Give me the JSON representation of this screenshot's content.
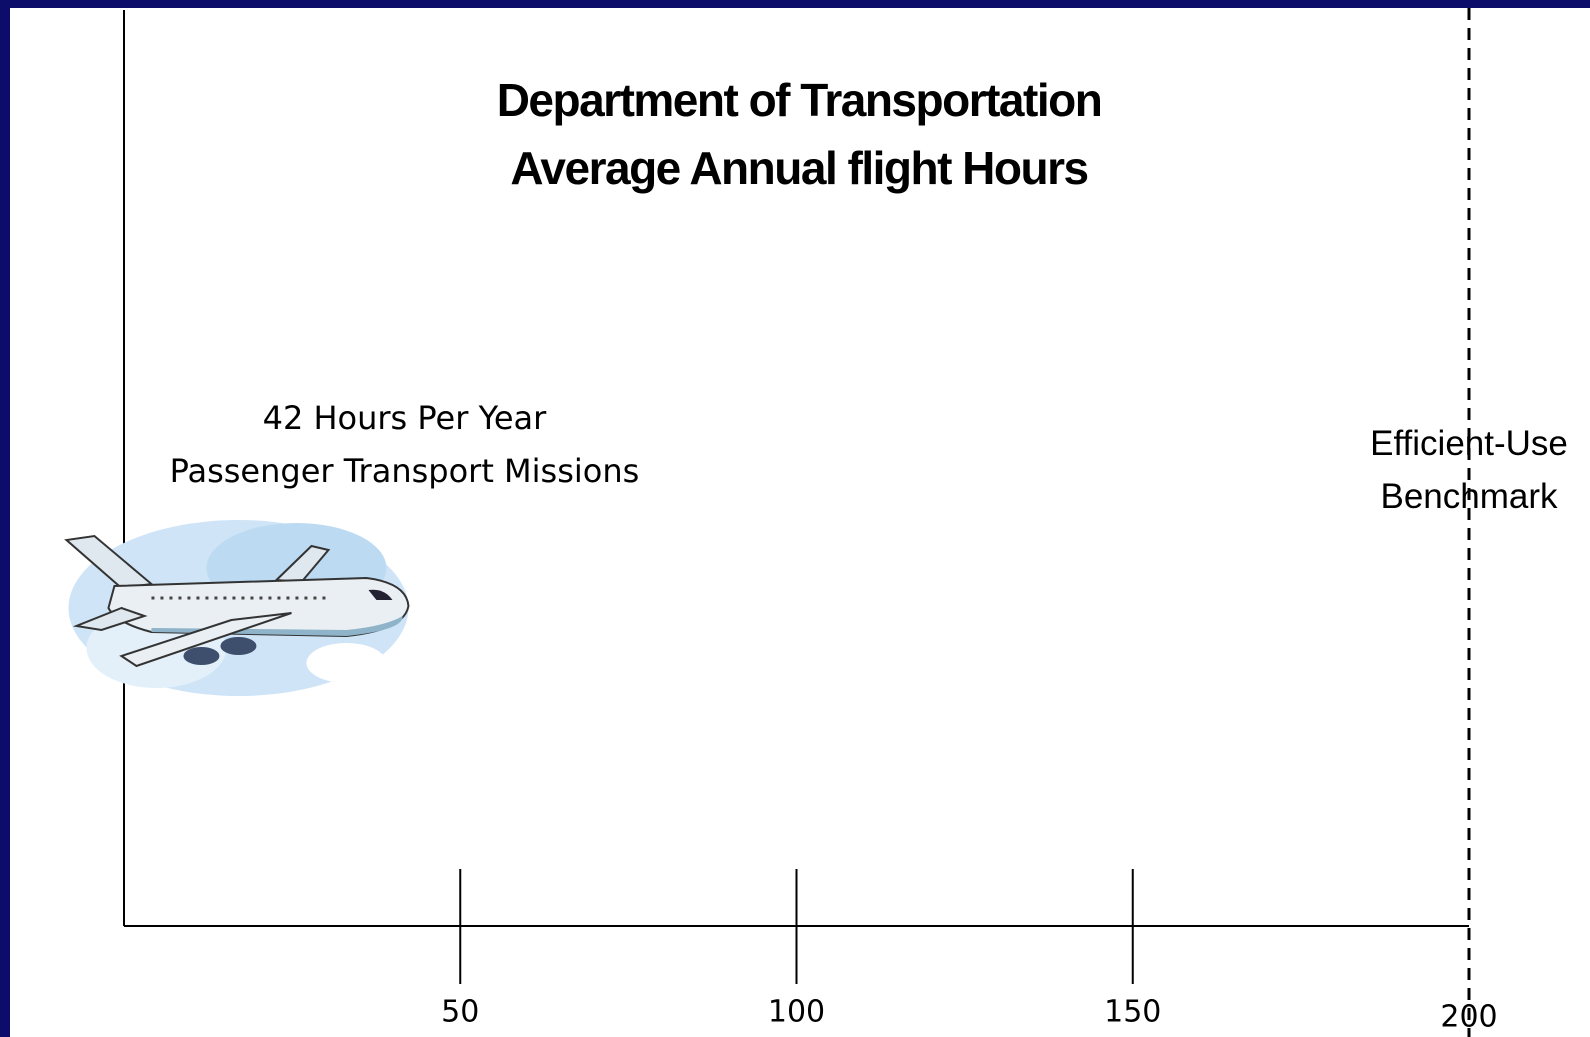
{
  "chart_data": {
    "type": "marker",
    "title": "Department of Transportation",
    "subtitle": "Average Annual flight Hours",
    "categories": [
      "Passenger Transport Missions"
    ],
    "values": [
      42
    ],
    "value_labels": [
      "42 Hours Per Year"
    ],
    "benchmark": {
      "value": 200,
      "label": "Efficient-Use Benchmark"
    },
    "xlim": [
      0,
      200
    ],
    "xticks": [
      50,
      100,
      150,
      200
    ]
  }
}
